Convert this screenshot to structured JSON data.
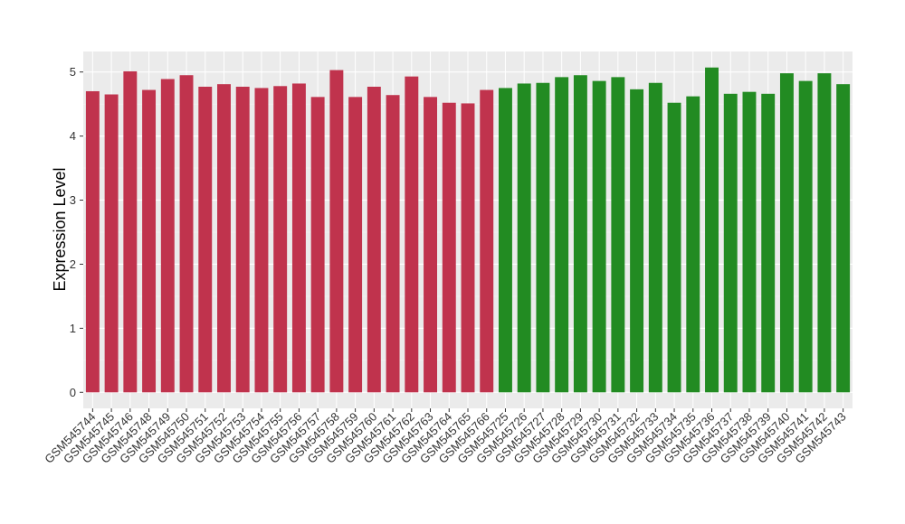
{
  "chart_data": {
    "type": "bar",
    "y_label": "Expression Level",
    "categories": [
      "GSM545744",
      "GSM545745",
      "GSM545746",
      "GSM545748",
      "GSM545749",
      "GSM545750",
      "GSM545751",
      "GSM545752",
      "GSM545753",
      "GSM545754",
      "GSM545755",
      "GSM545756",
      "GSM545757",
      "GSM545758",
      "GSM545759",
      "GSM545760",
      "GSM545761",
      "GSM545762",
      "GSM545763",
      "GSM545764",
      "GSM545765",
      "GSM545766",
      "GSM545725",
      "GSM545726",
      "GSM545727",
      "GSM545728",
      "GSM545729",
      "GSM545730",
      "GSM545731",
      "GSM545732",
      "GSM545733",
      "GSM545734",
      "GSM545735",
      "GSM545736",
      "GSM545737",
      "GSM545738",
      "GSM545739",
      "GSM545740",
      "GSM545741",
      "GSM545742",
      "GSM545743"
    ],
    "values": [
      4.7,
      4.65,
      5.01,
      4.72,
      4.89,
      4.95,
      4.77,
      4.81,
      4.77,
      4.75,
      4.78,
      4.82,
      4.61,
      5.03,
      4.61,
      4.77,
      4.64,
      4.93,
      4.61,
      4.52,
      4.51,
      4.72,
      4.75,
      4.82,
      4.83,
      4.92,
      4.95,
      4.86,
      4.92,
      4.73,
      4.83,
      4.52,
      4.62,
      5.07,
      4.66,
      4.69,
      4.66,
      4.98,
      4.86,
      4.98,
      4.81
    ],
    "colors": [
      "#c0334d",
      "#c0334d",
      "#c0334d",
      "#c0334d",
      "#c0334d",
      "#c0334d",
      "#c0334d",
      "#c0334d",
      "#c0334d",
      "#c0334d",
      "#c0334d",
      "#c0334d",
      "#c0334d",
      "#c0334d",
      "#c0334d",
      "#c0334d",
      "#c0334d",
      "#c0334d",
      "#c0334d",
      "#c0334d",
      "#c0334d",
      "#c0334d",
      "#228b22",
      "#228b22",
      "#228b22",
      "#228b22",
      "#228b22",
      "#228b22",
      "#228b22",
      "#228b22",
      "#228b22",
      "#228b22",
      "#228b22",
      "#228b22",
      "#228b22",
      "#228b22",
      "#228b22",
      "#228b22",
      "#228b22",
      "#228b22",
      "#228b22"
    ],
    "ylim": [
      -0.25,
      5.32
    ],
    "yticks": [
      0,
      1,
      2,
      3,
      4,
      5
    ],
    "grid": true
  }
}
